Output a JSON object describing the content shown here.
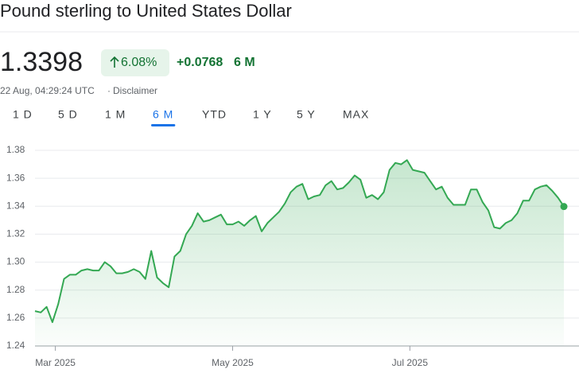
{
  "chart_data": {
    "type": "line",
    "title": "Pound sterling to United States Dollar",
    "quote": {
      "price": "1.3398",
      "change_percent": "6.08%",
      "change": "+0.0768",
      "period": "6 M",
      "timestamp": "22 Aug, 04:29:24 UTC",
      "separator": "·",
      "disclaimer": "Disclaimer"
    },
    "ranges": [
      "1 D",
      "5 D",
      "1 M",
      "6 M",
      "YTD",
      "1 Y",
      "5 Y",
      "MAX"
    ],
    "selected_range": 3,
    "color": "#34a853",
    "x": [
      -7,
      -5,
      -3,
      -1,
      1,
      3,
      5,
      7,
      9,
      11,
      13,
      15,
      17,
      19,
      21,
      23,
      25,
      27,
      29,
      31,
      33,
      35,
      37,
      39,
      41,
      43,
      45,
      47,
      49,
      51,
      53,
      55,
      57,
      59,
      61,
      63,
      65,
      67,
      69,
      71,
      73,
      75,
      77,
      79,
      81,
      83,
      85,
      87,
      89,
      91,
      93,
      95,
      97,
      99,
      101,
      103,
      105,
      107,
      109,
      111,
      113,
      115,
      117,
      119,
      121,
      123,
      125,
      127,
      129,
      131,
      133,
      135,
      137,
      139,
      141,
      143,
      145,
      147,
      149,
      151,
      153,
      155,
      157,
      159,
      161,
      163,
      165,
      167,
      169,
      171,
      173,
      175
    ],
    "values": [
      1.265,
      1.264,
      1.268,
      1.257,
      1.27,
      1.288,
      1.291,
      1.291,
      1.294,
      1.295,
      1.294,
      1.294,
      1.3,
      1.297,
      1.292,
      1.292,
      1.293,
      1.295,
      1.293,
      1.288,
      1.308,
      1.289,
      1.285,
      1.282,
      1.304,
      1.308,
      1.32,
      1.326,
      1.335,
      1.329,
      1.33,
      1.332,
      1.334,
      1.327,
      1.327,
      1.329,
      1.326,
      1.33,
      1.333,
      1.322,
      1.328,
      1.332,
      1.336,
      1.342,
      1.35,
      1.354,
      1.356,
      1.345,
      1.347,
      1.348,
      1.355,
      1.358,
      1.352,
      1.353,
      1.357,
      1.362,
      1.359,
      1.346,
      1.348,
      1.345,
      1.35,
      1.366,
      1.371,
      1.37,
      1.373,
      1.366,
      1.365,
      1.364,
      1.358,
      1.352,
      1.354,
      1.346,
      1.341,
      1.341,
      1.341,
      1.352,
      1.352,
      1.343,
      1.337,
      1.325,
      1.324,
      1.328,
      1.33,
      1.335,
      1.344,
      1.344,
      1.352,
      1.354,
      1.355,
      1.351,
      1.346,
      1.3398
    ],
    "xlim": [
      -7,
      175
    ],
    "xticks": [
      {
        "value": 0,
        "label": "Mar 2025"
      },
      {
        "value": 61,
        "label": "May 2025"
      },
      {
        "value": 122,
        "label": "Jul 2025"
      }
    ],
    "ylim": [
      1.24,
      1.38
    ],
    "yticks": [
      1.24,
      1.26,
      1.28,
      {
        "value": 1.3,
        "label": "1.30"
      },
      1.32,
      1.34,
      1.36,
      1.38
    ],
    "grid": true
  }
}
